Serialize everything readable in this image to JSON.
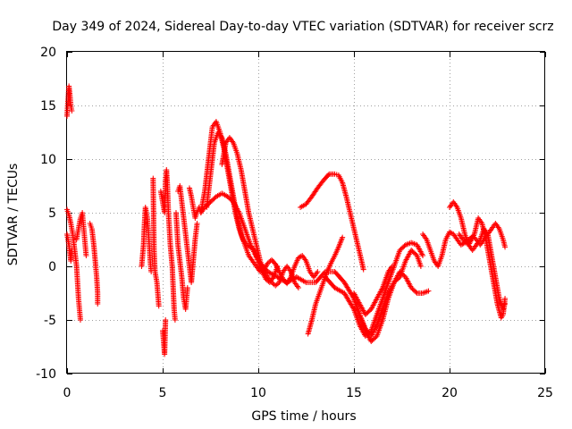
{
  "chart_data": {
    "type": "scatter",
    "title": "Day 349 of 2024, Sidereal Day-to-day VTEC variation (SDTVAR) for receiver scrz",
    "xlabel": "GPS time / hours",
    "ylabel": "SDTVAR / TECUs",
    "xlim": [
      0,
      25
    ],
    "ylim": [
      -10,
      20
    ],
    "xticks": [
      0,
      5,
      10,
      15,
      20,
      25
    ],
    "xtick_labels": [
      "0",
      "5",
      "10",
      "15",
      "20",
      "25"
    ],
    "yticks": [
      -10,
      -5,
      0,
      5,
      10,
      15,
      20
    ],
    "ytick_labels": [
      "-10",
      "-5",
      "0",
      "5",
      "10",
      "15",
      "20"
    ],
    "grid": true,
    "marker": "+",
    "color": "#ff0000",
    "segments": [
      [
        [
          0.0,
          14.0
        ],
        [
          0.05,
          15.5
        ],
        [
          0.1,
          16.8
        ],
        [
          0.15,
          16.0
        ],
        [
          0.2,
          15.0
        ],
        [
          0.25,
          14.5
        ]
      ],
      [
        [
          0.0,
          5.3
        ],
        [
          0.1,
          4.8
        ],
        [
          0.2,
          4.0
        ],
        [
          0.3,
          3.0
        ],
        [
          0.4,
          1.5
        ],
        [
          0.5,
          0.0
        ],
        [
          0.55,
          -1.5
        ],
        [
          0.6,
          -3.0
        ],
        [
          0.65,
          -4.0
        ],
        [
          0.7,
          -5.0
        ]
      ],
      [
        [
          0.0,
          3.0
        ],
        [
          0.1,
          2.0
        ],
        [
          0.2,
          0.5
        ],
        [
          0.25,
          1.5
        ]
      ],
      [
        [
          0.5,
          2.5
        ],
        [
          0.6,
          3.5
        ],
        [
          0.7,
          4.5
        ],
        [
          0.8,
          5.0
        ],
        [
          0.85,
          4.0
        ],
        [
          0.9,
          3.0
        ],
        [
          0.95,
          2.0
        ],
        [
          1.0,
          1.0
        ]
      ],
      [
        [
          1.2,
          4.0
        ],
        [
          1.3,
          3.5
        ],
        [
          1.4,
          2.0
        ],
        [
          1.5,
          0.0
        ],
        [
          1.55,
          -1.0
        ],
        [
          1.6,
          -2.5
        ],
        [
          1.6,
          -3.5
        ]
      ],
      [
        [
          3.9,
          0.0
        ],
        [
          4.0,
          2.0
        ],
        [
          4.05,
          4.0
        ],
        [
          4.1,
          5.5
        ],
        [
          4.2,
          4.5
        ],
        [
          4.3,
          2.0
        ],
        [
          4.35,
          0.5
        ],
        [
          4.4,
          -0.5
        ]
      ],
      [
        [
          4.5,
          8.2
        ],
        [
          4.55,
          1.5
        ],
        [
          4.6,
          -0.5
        ],
        [
          4.7,
          -1.5
        ],
        [
          4.8,
          -3.7
        ]
      ],
      [
        [
          4.9,
          7.0
        ],
        [
          5.0,
          6.0
        ],
        [
          5.1,
          5.0
        ],
        [
          5.15,
          8.0
        ],
        [
          5.2,
          9.0
        ],
        [
          5.25,
          7.5
        ],
        [
          5.3,
          5.0
        ],
        [
          5.35,
          3.5
        ],
        [
          5.4,
          2.0
        ],
        [
          5.5,
          0.0
        ],
        [
          5.55,
          -2.0
        ],
        [
          5.6,
          -4.0
        ],
        [
          5.65,
          -5.0
        ]
      ],
      [
        [
          5.0,
          -6.0
        ],
        [
          5.05,
          -7.0
        ],
        [
          5.1,
          -8.2
        ],
        [
          5.15,
          -5.0
        ]
      ],
      [
        [
          5.7,
          5.0
        ],
        [
          5.8,
          2.0
        ],
        [
          5.9,
          0.5
        ],
        [
          6.0,
          -1.0
        ],
        [
          6.1,
          -3.0
        ],
        [
          6.2,
          -4.0
        ],
        [
          6.25,
          -3.0
        ],
        [
          6.3,
          -2.0
        ]
      ],
      [
        [
          5.8,
          7.0
        ],
        [
          5.9,
          7.5
        ],
        [
          6.0,
          6.0
        ],
        [
          6.1,
          4.5
        ],
        [
          6.2,
          3.0
        ],
        [
          6.3,
          1.5
        ],
        [
          6.4,
          0.0
        ],
        [
          6.5,
          -1.5
        ],
        [
          6.6,
          0.5
        ],
        [
          6.7,
          2.5
        ],
        [
          6.8,
          4.0
        ]
      ],
      [
        [
          6.4,
          7.3
        ],
        [
          6.5,
          6.5
        ],
        [
          6.6,
          5.5
        ],
        [
          6.7,
          4.5
        ],
        [
          6.8,
          5.0
        ],
        [
          6.9,
          5.5
        ],
        [
          7.0,
          5.0
        ],
        [
          7.2,
          5.5
        ],
        [
          7.5,
          6.0
        ],
        [
          7.8,
          6.5
        ],
        [
          8.1,
          6.8
        ],
        [
          8.4,
          6.5
        ],
        [
          8.7,
          6.0
        ],
        [
          9.0,
          5.0
        ],
        [
          9.3,
          3.5
        ],
        [
          9.6,
          2.0
        ],
        [
          10.0,
          0.5
        ],
        [
          10.5,
          -0.5
        ],
        [
          11.0,
          -1.0
        ],
        [
          11.5,
          -1.5
        ],
        [
          12.0,
          -1.0
        ]
      ],
      [
        [
          7.0,
          5.0
        ],
        [
          7.2,
          7.0
        ],
        [
          7.4,
          10.0
        ],
        [
          7.6,
          13.0
        ],
        [
          7.8,
          13.5
        ],
        [
          8.0,
          12.5
        ],
        [
          8.2,
          11.0
        ],
        [
          8.4,
          9.0
        ],
        [
          8.6,
          7.0
        ],
        [
          8.8,
          5.0
        ],
        [
          9.0,
          3.5
        ],
        [
          9.2,
          2.5
        ],
        [
          9.4,
          2.0
        ],
        [
          9.6,
          1.8
        ],
        [
          9.8,
          1.5
        ],
        [
          10.0,
          0.5
        ],
        [
          10.2,
          -0.5
        ],
        [
          10.4,
          -1.2
        ],
        [
          10.6,
          -1.5
        ],
        [
          10.8,
          -1.0
        ],
        [
          11.0,
          0.0
        ]
      ],
      [
        [
          7.3,
          5.5
        ],
        [
          7.5,
          8.5
        ],
        [
          7.7,
          11.5
        ],
        [
          7.9,
          12.5
        ],
        [
          8.1,
          12.0
        ],
        [
          8.3,
          10.5
        ],
        [
          8.5,
          8.5
        ],
        [
          8.7,
          6.5
        ],
        [
          8.9,
          4.5
        ],
        [
          9.1,
          3.0
        ],
        [
          9.3,
          2.0
        ],
        [
          9.5,
          1.0
        ],
        [
          9.7,
          0.5
        ],
        [
          9.9,
          0.0
        ],
        [
          10.1,
          -0.5
        ],
        [
          10.3,
          -0.3
        ],
        [
          10.5,
          0.3
        ],
        [
          10.7,
          0.6
        ],
        [
          10.9,
          0.2
        ],
        [
          11.1,
          -0.5
        ],
        [
          11.3,
          -1.2
        ],
        [
          11.5,
          -1.6
        ],
        [
          11.7,
          -1.0
        ],
        [
          11.9,
          0.0
        ],
        [
          12.1,
          0.8
        ],
        [
          12.3,
          1.0
        ],
        [
          12.5,
          0.5
        ],
        [
          12.7,
          -0.5
        ],
        [
          12.9,
          -1.0
        ],
        [
          13.1,
          -0.5
        ]
      ],
      [
        [
          8.1,
          9.5
        ],
        [
          8.3,
          11.5
        ],
        [
          8.5,
          12.0
        ],
        [
          8.7,
          11.5
        ],
        [
          8.9,
          10.5
        ],
        [
          9.1,
          9.0
        ],
        [
          9.3,
          7.0
        ],
        [
          9.5,
          5.0
        ],
        [
          9.7,
          3.5
        ],
        [
          9.9,
          2.0
        ],
        [
          10.1,
          0.5
        ],
        [
          10.3,
          -0.5
        ],
        [
          10.5,
          -1.0
        ],
        [
          10.7,
          -1.5
        ],
        [
          10.9,
          -1.8
        ],
        [
          11.1,
          -1.5
        ],
        [
          11.3,
          -0.5
        ],
        [
          11.5,
          0.0
        ],
        [
          11.7,
          -0.5
        ],
        [
          11.9,
          -1.5
        ],
        [
          12.1,
          -2.0
        ]
      ],
      [
        [
          12.2,
          5.5
        ],
        [
          12.5,
          5.8
        ],
        [
          12.8,
          6.5
        ],
        [
          13.1,
          7.3
        ],
        [
          13.4,
          8.0
        ],
        [
          13.7,
          8.6
        ],
        [
          14.0,
          8.6
        ],
        [
          14.2,
          8.5
        ],
        [
          14.4,
          7.8
        ],
        [
          14.6,
          6.5
        ],
        [
          14.8,
          5.0
        ],
        [
          15.0,
          3.5
        ],
        [
          15.2,
          2.0
        ],
        [
          15.4,
          0.5
        ],
        [
          15.5,
          -0.3
        ]
      ],
      [
        [
          12.6,
          -6.3
        ],
        [
          12.8,
          -5.0
        ],
        [
          13.0,
          -3.5
        ],
        [
          13.2,
          -2.5
        ],
        [
          13.4,
          -1.5
        ],
        [
          13.6,
          -0.5
        ],
        [
          13.8,
          0.3
        ],
        [
          14.0,
          1.0
        ],
        [
          14.2,
          1.8
        ],
        [
          14.4,
          2.7
        ]
      ],
      [
        [
          12.0,
          -1.0
        ],
        [
          12.5,
          -1.5
        ],
        [
          13.0,
          -1.5
        ],
        [
          13.5,
          -0.5
        ],
        [
          14.0,
          -0.5
        ],
        [
          14.5,
          -1.5
        ],
        [
          15.0,
          -3.0
        ],
        [
          15.3,
          -4.5
        ],
        [
          15.6,
          -6.0
        ],
        [
          15.9,
          -7.0
        ],
        [
          16.2,
          -6.5
        ],
        [
          16.5,
          -5.0
        ],
        [
          16.8,
          -3.0
        ],
        [
          17.1,
          -1.5
        ],
        [
          17.4,
          -0.5
        ],
        [
          17.7,
          -1.0
        ],
        [
          18.0,
          -2.0
        ],
        [
          18.3,
          -2.5
        ],
        [
          18.6,
          -2.5
        ],
        [
          18.9,
          -2.3
        ]
      ],
      [
        [
          13.5,
          -1.0
        ],
        [
          14.0,
          -2.0
        ],
        [
          14.5,
          -2.5
        ],
        [
          15.0,
          -4.0
        ],
        [
          15.3,
          -5.5
        ],
        [
          15.6,
          -6.5
        ],
        [
          15.9,
          -6.0
        ],
        [
          16.2,
          -4.5
        ],
        [
          16.5,
          -3.0
        ],
        [
          16.8,
          -1.5
        ],
        [
          17.1,
          0.0
        ],
        [
          17.4,
          1.5
        ],
        [
          17.7,
          2.0
        ],
        [
          18.0,
          2.2
        ],
        [
          18.3,
          2.0
        ],
        [
          18.6,
          1.0
        ]
      ],
      [
        [
          15.0,
          -3.0
        ],
        [
          15.3,
          -4.5
        ],
        [
          15.6,
          -5.8
        ],
        [
          15.9,
          -6.5
        ],
        [
          16.2,
          -5.5
        ],
        [
          16.5,
          -4.0
        ],
        [
          16.8,
          -2.5
        ],
        [
          17.1,
          -1.5
        ],
        [
          17.4,
          -1.0
        ],
        [
          17.7,
          0.5
        ],
        [
          18.0,
          1.5
        ],
        [
          18.3,
          1.0
        ],
        [
          18.5,
          0.0
        ]
      ],
      [
        [
          15.0,
          -2.5
        ],
        [
          15.3,
          -3.5
        ],
        [
          15.6,
          -4.5
        ],
        [
          15.9,
          -4.0
        ],
        [
          16.2,
          -3.0
        ],
        [
          16.5,
          -2.0
        ],
        [
          16.8,
          -0.5
        ],
        [
          17.0,
          0.0
        ]
      ],
      [
        [
          18.6,
          3.0
        ],
        [
          18.8,
          2.5
        ],
        [
          19.0,
          1.5
        ],
        [
          19.2,
          0.5
        ],
        [
          19.4,
          0.0
        ],
        [
          19.6,
          1.0
        ],
        [
          19.8,
          2.5
        ],
        [
          20.0,
          3.2
        ],
        [
          20.2,
          3.0
        ],
        [
          20.4,
          2.5
        ],
        [
          20.6,
          2.0
        ],
        [
          20.8,
          2.2
        ],
        [
          21.0,
          2.5
        ],
        [
          21.2,
          2.8
        ],
        [
          21.4,
          2.5
        ],
        [
          21.6,
          2.0
        ],
        [
          21.8,
          2.5
        ],
        [
          22.0,
          3.0
        ],
        [
          22.2,
          3.5
        ],
        [
          22.4,
          4.0
        ],
        [
          22.6,
          3.5
        ],
        [
          22.8,
          2.5
        ],
        [
          22.9,
          1.8
        ]
      ],
      [
        [
          20.0,
          5.5
        ],
        [
          20.2,
          6.0
        ],
        [
          20.4,
          5.5
        ],
        [
          20.6,
          4.5
        ],
        [
          20.8,
          3.0
        ],
        [
          21.0,
          2.0
        ],
        [
          21.2,
          1.5
        ],
        [
          21.4,
          2.0
        ],
        [
          21.6,
          2.5
        ],
        [
          21.8,
          3.5
        ],
        [
          22.0,
          3.0
        ],
        [
          22.2,
          1.0
        ],
        [
          22.4,
          -1.0
        ],
        [
          22.6,
          -3.0
        ],
        [
          22.8,
          -4.0
        ],
        [
          22.9,
          -3.5
        ]
      ],
      [
        [
          20.5,
          3.0
        ],
        [
          20.7,
          2.5
        ],
        [
          21.0,
          2.0
        ],
        [
          21.3,
          3.0
        ],
        [
          21.5,
          4.5
        ],
        [
          21.7,
          4.0
        ],
        [
          21.9,
          2.5
        ],
        [
          22.1,
          0.5
        ],
        [
          22.3,
          -1.5
        ],
        [
          22.5,
          -3.5
        ],
        [
          22.7,
          -4.8
        ],
        [
          22.8,
          -4.5
        ],
        [
          22.9,
          -3.0
        ]
      ]
    ]
  }
}
